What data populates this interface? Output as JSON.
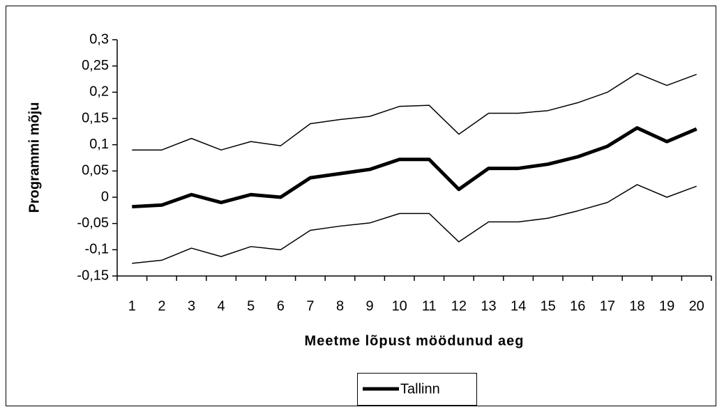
{
  "chart_data": {
    "type": "line",
    "y_label": "Programmi mõju",
    "x_label": "Meetme lõpust möödunud aeg",
    "categories": [
      "1",
      "2",
      "3",
      "4",
      "5",
      "6",
      "7",
      "8",
      "9",
      "10",
      "11",
      "12",
      "13",
      "14",
      "15",
      "16",
      "17",
      "18",
      "19",
      "20"
    ],
    "series": [
      {
        "name": "Tallinn",
        "color": "#000000",
        "line_width": 5,
        "values": [
          -0.018,
          -0.015,
          0.005,
          -0.01,
          0.005,
          0,
          0.037,
          0.045,
          0.053,
          0.072,
          0.072,
          0.015,
          0.055,
          0.055,
          0.063,
          0.077,
          0.097,
          0.132,
          0.106,
          0.13
        ]
      },
      {
        "color": "#000000",
        "line_width": 1.5,
        "values": [
          0.09,
          0.09,
          0.112,
          0.09,
          0.106,
          0.098,
          0.14,
          0.148,
          0.154,
          0.173,
          0.175,
          0.12,
          0.16,
          0.16,
          0.165,
          0.18,
          0.2,
          0.236,
          0.213,
          0.234
        ]
      },
      {
        "color": "#000000",
        "line_width": 1.5,
        "values": [
          -0.126,
          -0.12,
          -0.097,
          -0.113,
          -0.094,
          -0.1,
          -0.063,
          -0.055,
          -0.049,
          -0.031,
          -0.031,
          -0.085,
          -0.047,
          -0.047,
          -0.04,
          -0.026,
          -0.01,
          0.024,
          0,
          0.021
        ]
      }
    ],
    "ylim": [
      -0.15,
      0.3
    ],
    "yticks": [
      {
        "value": -0.15,
        "label": "-0,15"
      },
      {
        "value": -0.1,
        "label": "-0,1"
      },
      {
        "value": -0.05,
        "label": "-0,05"
      },
      0,
      {
        "value": 0.05,
        "label": "0,05"
      },
      {
        "value": 0.1,
        "label": "0,1"
      },
      {
        "value": 0.15,
        "label": "0,15"
      },
      {
        "value": 0.2,
        "label": "0,2"
      },
      {
        "value": 0.25,
        "label": "0,25"
      },
      {
        "value": 0.3,
        "label": "0,3"
      }
    ],
    "grid": false,
    "legend": "bottom"
  }
}
